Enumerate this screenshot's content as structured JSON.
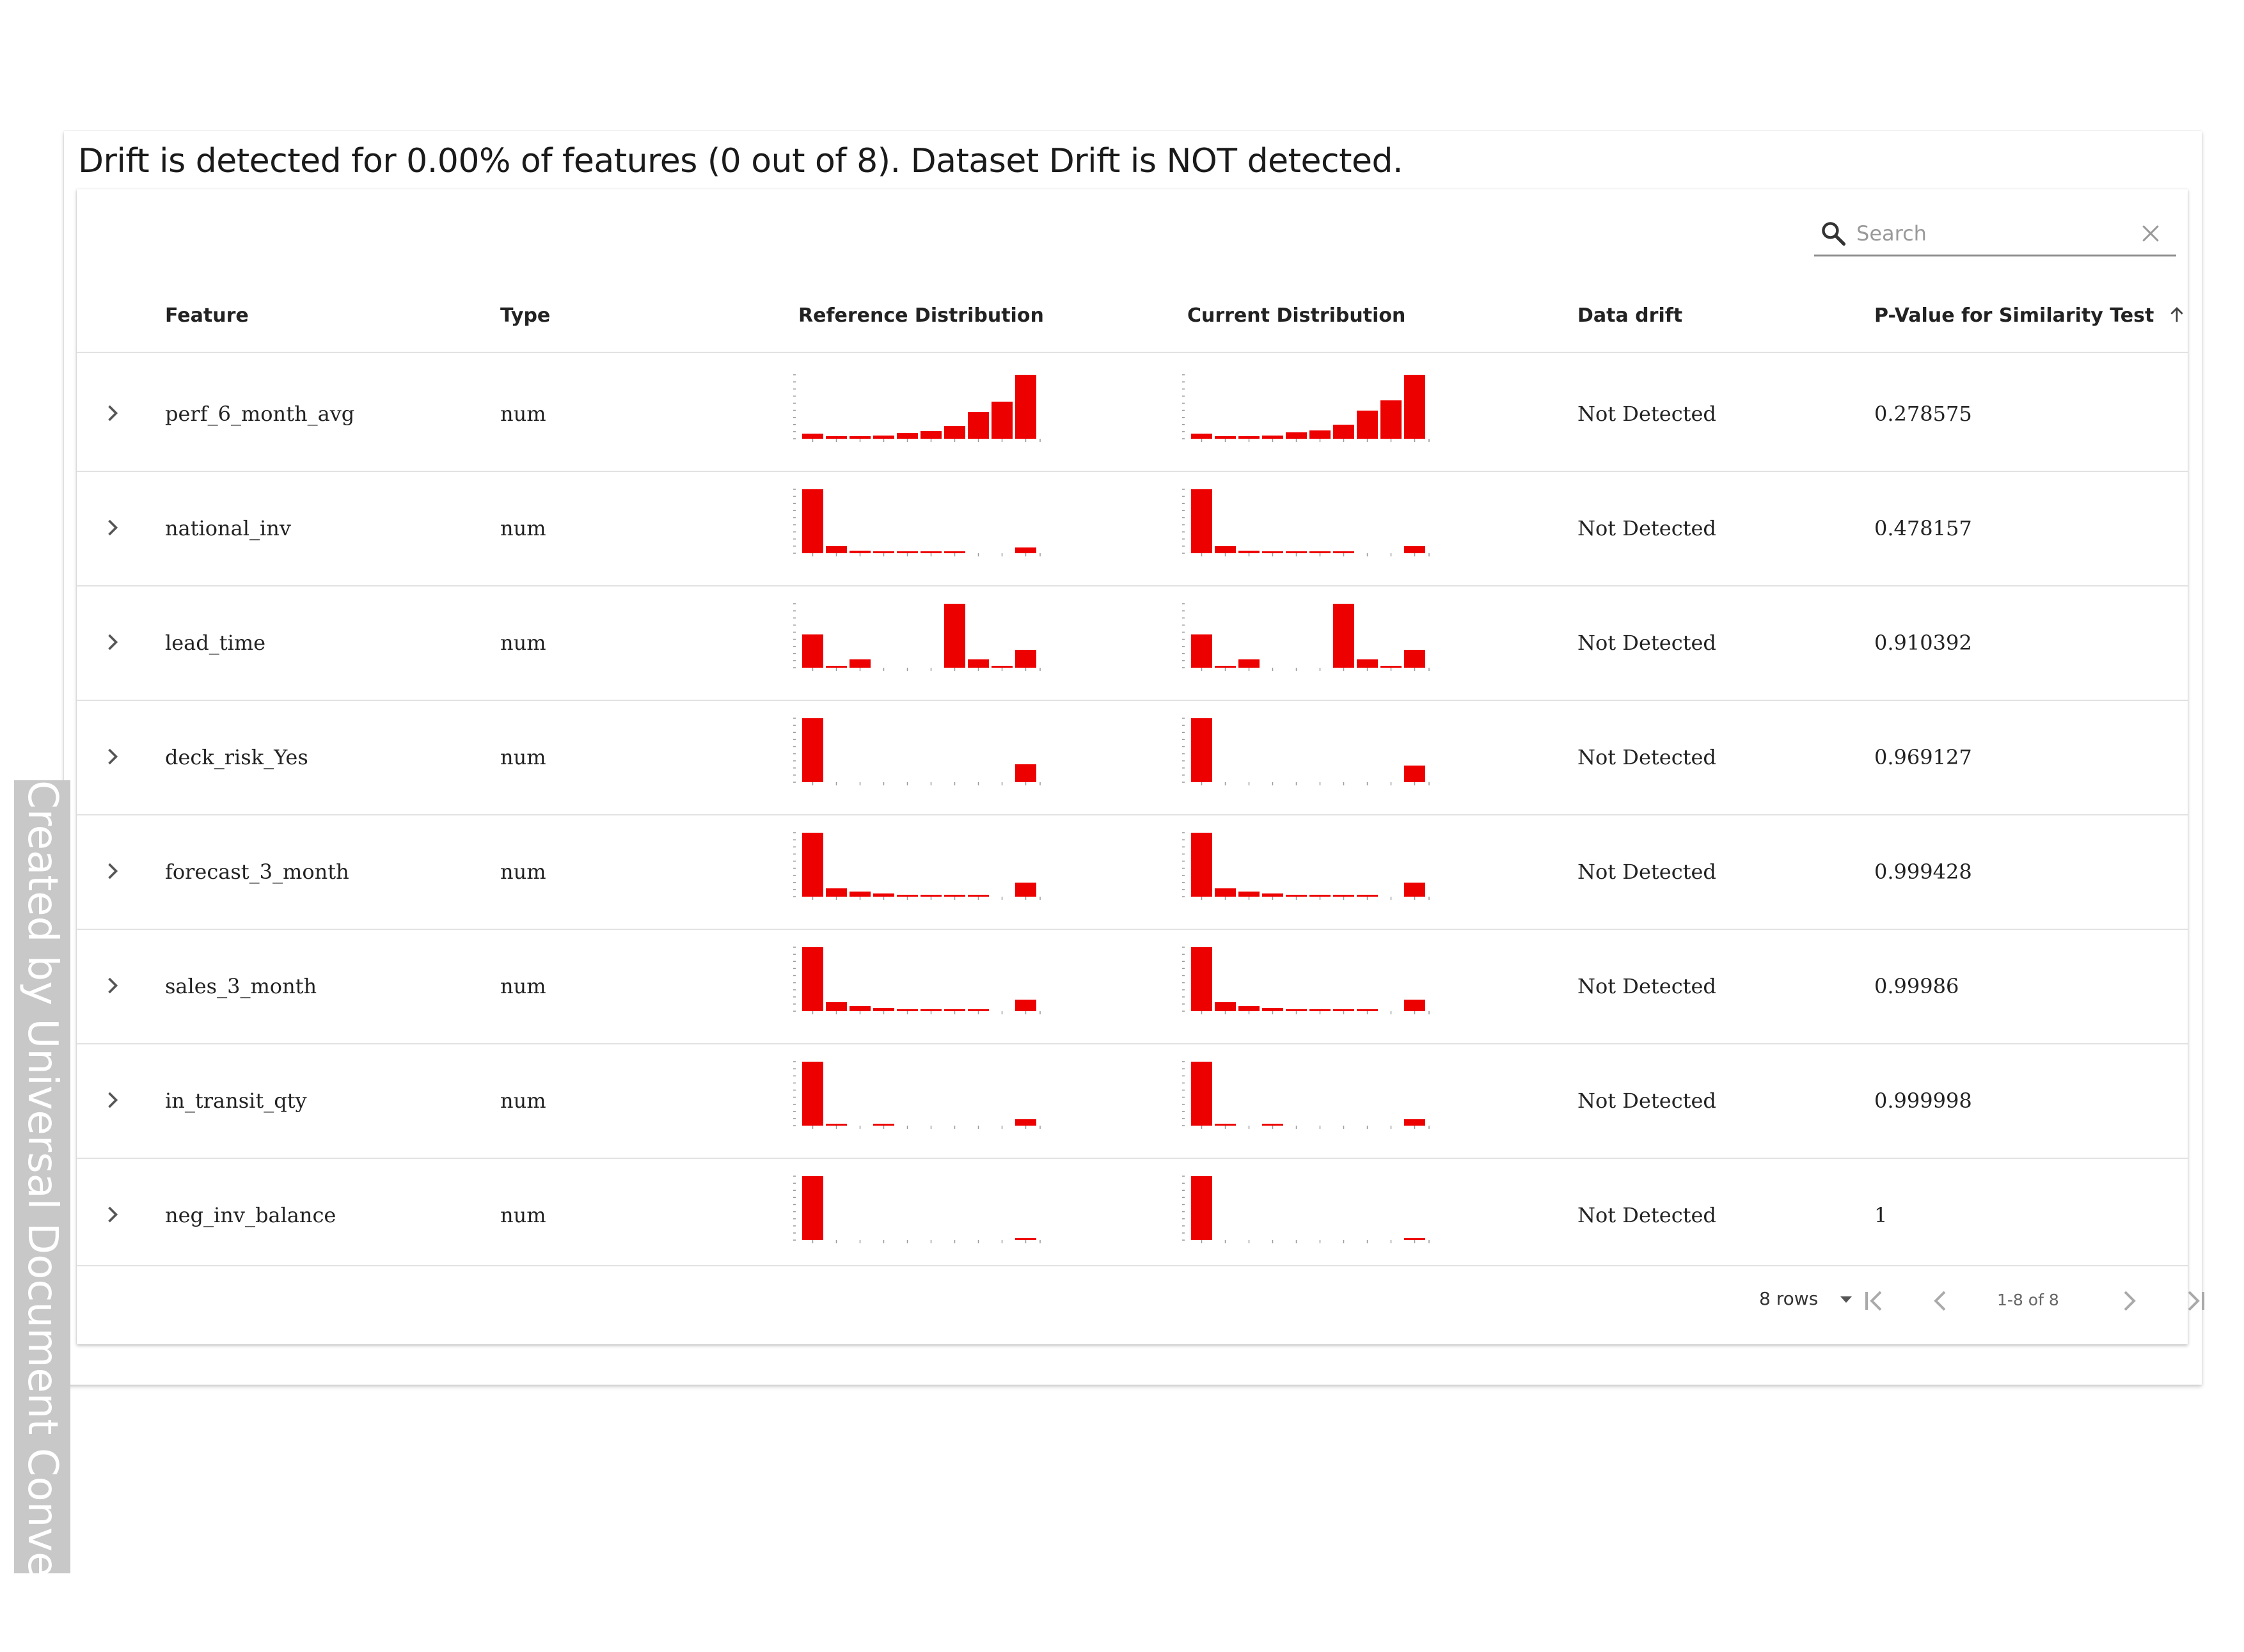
{
  "summary": "Drift is detected for 0.00% of features (0 out of 8). Dataset Drift is NOT detected.",
  "search": {
    "placeholder": "Search",
    "value": ""
  },
  "columns": [
    "Feature",
    "Type",
    "Reference Distribution",
    "Current Distribution",
    "Data drift",
    "P-Value for Similarity Test"
  ],
  "sort": {
    "column": "P-Value for Similarity Test",
    "direction": "ascending",
    "icon": "arrow-up-icon"
  },
  "bar_color": "#ed0000",
  "rows": [
    {
      "feature": "perf_6_month_avg",
      "type": "num",
      "drift": "Not Detected",
      "pvalue": "0.278575",
      "reference": [
        0.08,
        0.04,
        0.04,
        0.05,
        0.09,
        0.12,
        0.2,
        0.42,
        0.58,
        1.0
      ],
      "current": [
        0.08,
        0.04,
        0.04,
        0.05,
        0.1,
        0.13,
        0.22,
        0.44,
        0.6,
        1.0
      ]
    },
    {
      "feature": "national_inv",
      "type": "num",
      "drift": "Not Detected",
      "pvalue": "0.478157",
      "reference": [
        1.0,
        0.11,
        0.04,
        0.02,
        0.02,
        0.02,
        0.02,
        0.0,
        0.0,
        0.09
      ],
      "current": [
        1.0,
        0.11,
        0.04,
        0.02,
        0.02,
        0.02,
        0.02,
        0.0,
        0.0,
        0.11
      ]
    },
    {
      "feature": "lead_time",
      "type": "num",
      "drift": "Not Detected",
      "pvalue": "0.910392",
      "reference": [
        0.52,
        0.02,
        0.13,
        0.0,
        0.0,
        0.0,
        1.0,
        0.13,
        0.03,
        0.28
      ],
      "current": [
        0.52,
        0.02,
        0.13,
        0.0,
        0.0,
        0.0,
        1.0,
        0.13,
        0.03,
        0.28
      ]
    },
    {
      "feature": "deck_risk_Yes",
      "type": "num",
      "drift": "Not Detected",
      "pvalue": "0.969127",
      "reference": [
        1.0,
        0.0,
        0.0,
        0.0,
        0.0,
        0.0,
        0.0,
        0.0,
        0.0,
        0.28
      ],
      "current": [
        1.0,
        0.0,
        0.0,
        0.0,
        0.0,
        0.0,
        0.0,
        0.0,
        0.0,
        0.26
      ]
    },
    {
      "feature": "forecast_3_month",
      "type": "num",
      "drift": "Not Detected",
      "pvalue": "0.999428",
      "reference": [
        1.0,
        0.13,
        0.08,
        0.05,
        0.03,
        0.03,
        0.02,
        0.02,
        0.0,
        0.22
      ],
      "current": [
        1.0,
        0.13,
        0.08,
        0.05,
        0.03,
        0.03,
        0.02,
        0.02,
        0.0,
        0.22
      ]
    },
    {
      "feature": "sales_3_month",
      "type": "num",
      "drift": "Not Detected",
      "pvalue": "0.99986",
      "reference": [
        1.0,
        0.14,
        0.08,
        0.05,
        0.03,
        0.02,
        0.02,
        0.02,
        0.0,
        0.18
      ],
      "current": [
        1.0,
        0.14,
        0.08,
        0.05,
        0.03,
        0.02,
        0.02,
        0.02,
        0.0,
        0.18
      ]
    },
    {
      "feature": "in_transit_qty",
      "type": "num",
      "drift": "Not Detected",
      "pvalue": "0.999998",
      "reference": [
        1.0,
        0.02,
        0.0,
        0.02,
        0.0,
        0.0,
        0.0,
        0.0,
        0.0,
        0.1
      ],
      "current": [
        1.0,
        0.02,
        0.0,
        0.02,
        0.0,
        0.0,
        0.0,
        0.0,
        0.0,
        0.1
      ]
    },
    {
      "feature": "neg_inv_balance",
      "type": "num",
      "drift": "Not Detected",
      "pvalue": "1",
      "reference": [
        1.0,
        0.0,
        0.0,
        0.0,
        0.0,
        0.0,
        0.0,
        0.0,
        0.0,
        0.03
      ],
      "current": [
        1.0,
        0.0,
        0.0,
        0.0,
        0.0,
        0.0,
        0.0,
        0.0,
        0.0,
        0.03
      ]
    }
  ],
  "pagination": {
    "rows_label": "8 rows",
    "page_info": "1-8 of 8"
  },
  "watermark": "Created by Universal Document Converter"
}
